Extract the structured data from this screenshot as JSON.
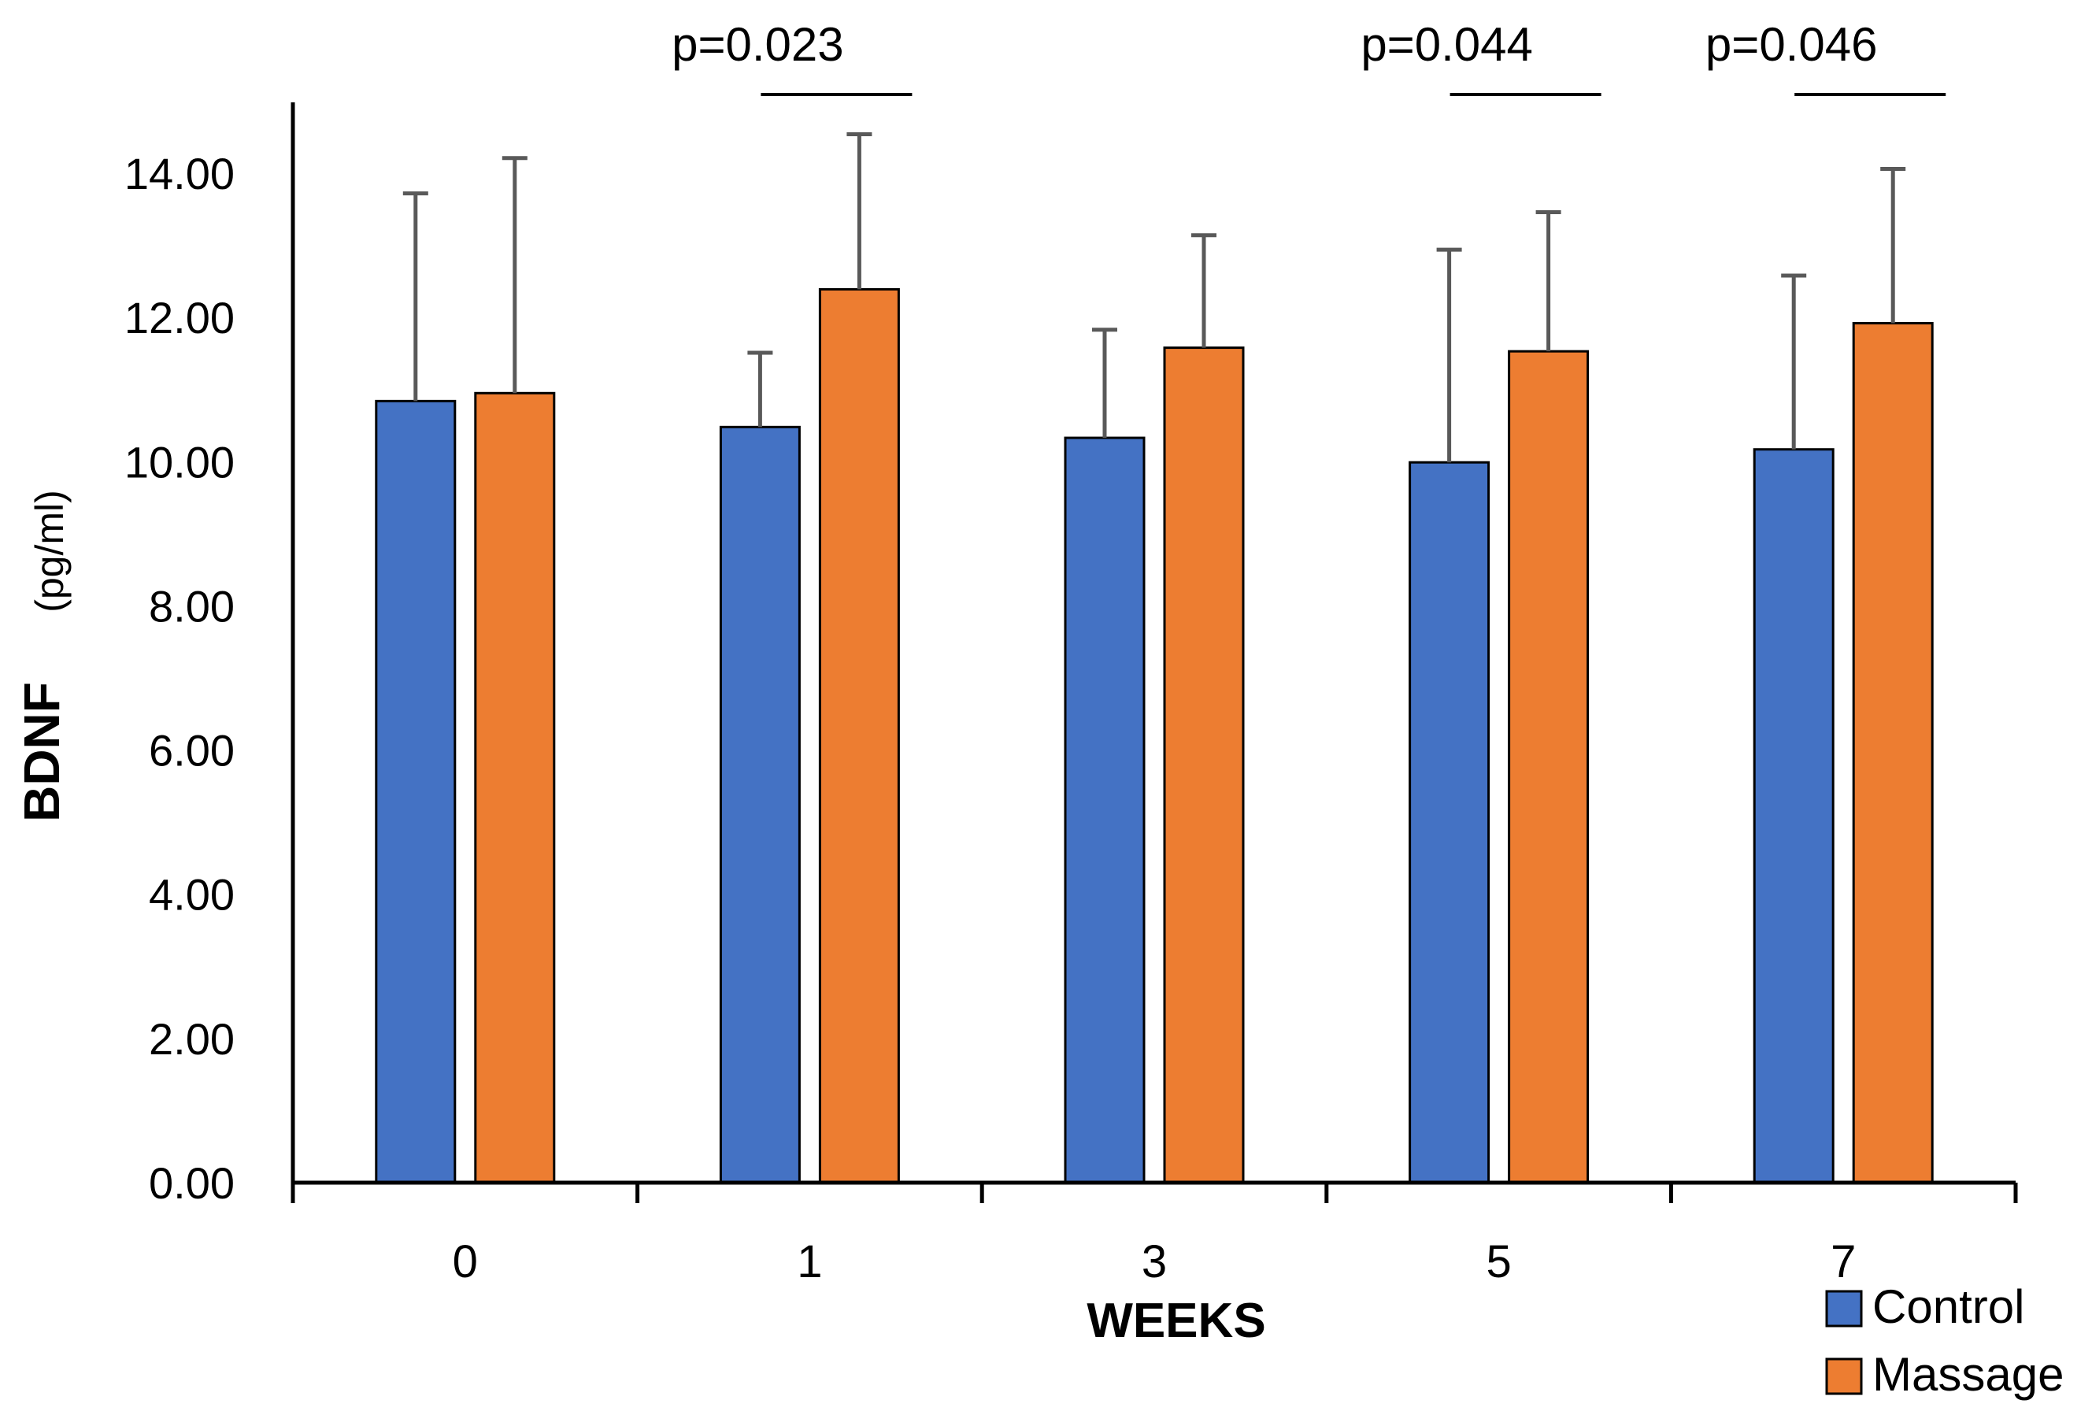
{
  "chart_data": {
    "type": "bar",
    "xlabel": "WEEKS",
    "ylabel": "BDNF",
    "ylabel_unit": "(pg/ml)",
    "categories": [
      "0",
      "1",
      "3",
      "5",
      "7"
    ],
    "ylim": [
      0,
      14
    ],
    "yticks": [
      0,
      2,
      4,
      6,
      8,
      10,
      12,
      14
    ],
    "ytick_labels": [
      "0.00",
      "2.00",
      "4.00",
      "6.00",
      "8.00",
      "10.00",
      "12.00",
      "14.00"
    ],
    "series": [
      {
        "name": "Control",
        "color": "#4472C4",
        "values": [
          10.84,
          10.48,
          10.33,
          9.99,
          10.17
        ],
        "errors": [
          2.88,
          1.03,
          1.5,
          2.95,
          2.41
        ]
      },
      {
        "name": "Massage",
        "color": "#ED7D31",
        "values": [
          10.95,
          12.39,
          11.58,
          11.53,
          11.92
        ],
        "errors": [
          3.26,
          2.15,
          1.56,
          1.93,
          2.14
        ]
      }
    ],
    "annotations": [
      {
        "category": "1",
        "text": "p=0.023",
        "bracket_y": 15.05
      },
      {
        "category": "5",
        "text": "p=0.044",
        "bracket_y": 15.05
      },
      {
        "category": "7",
        "text": "p=0.046",
        "bracket_y": 15.05
      }
    ],
    "legend_position": "bottom-right",
    "grid": false
  }
}
